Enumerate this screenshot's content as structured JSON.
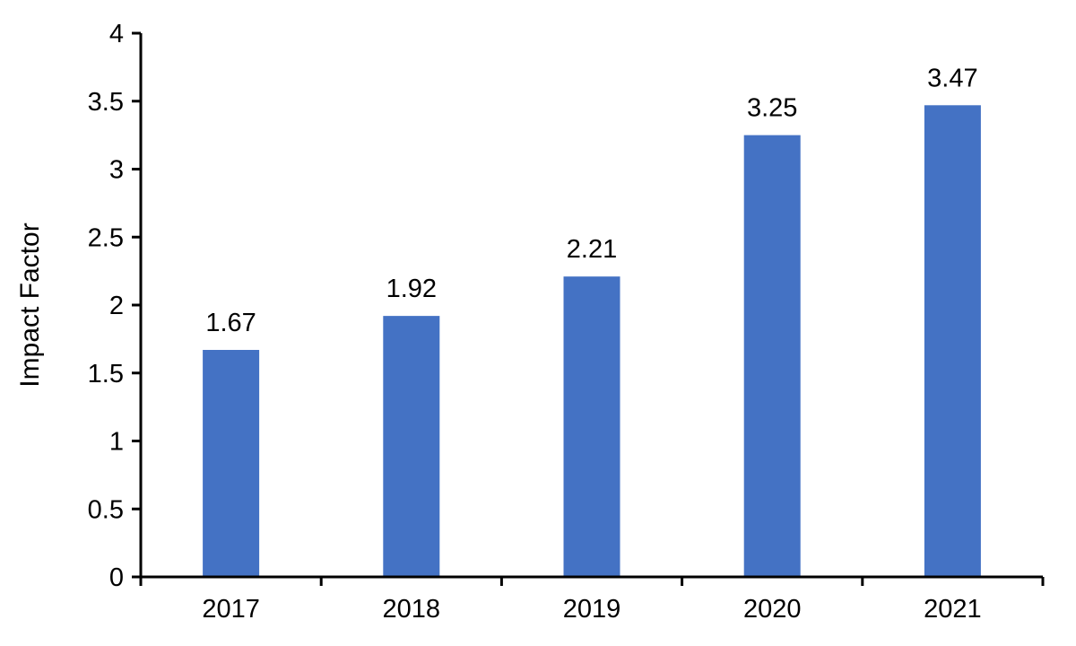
{
  "chart_data": {
    "type": "bar",
    "title": "",
    "xlabel": "",
    "ylabel": "Impact Factor",
    "categories": [
      "2017",
      "2018",
      "2019",
      "2020",
      "2021"
    ],
    "values": [
      1.67,
      1.92,
      2.21,
      3.25,
      3.47
    ],
    "data_labels": [
      "1.67",
      "1.92",
      "2.21",
      "3.25",
      "3.47"
    ],
    "ylim": [
      0,
      4
    ],
    "ytick_step": 0.5,
    "yticks": [
      "0",
      "0.5",
      "1",
      "1.5",
      "2",
      "2.5",
      "3",
      "3.5",
      "4"
    ],
    "grid": false,
    "legend": "none",
    "bar_color": "#4472C4",
    "axis_color": "#000000",
    "text_color": "#000000"
  }
}
